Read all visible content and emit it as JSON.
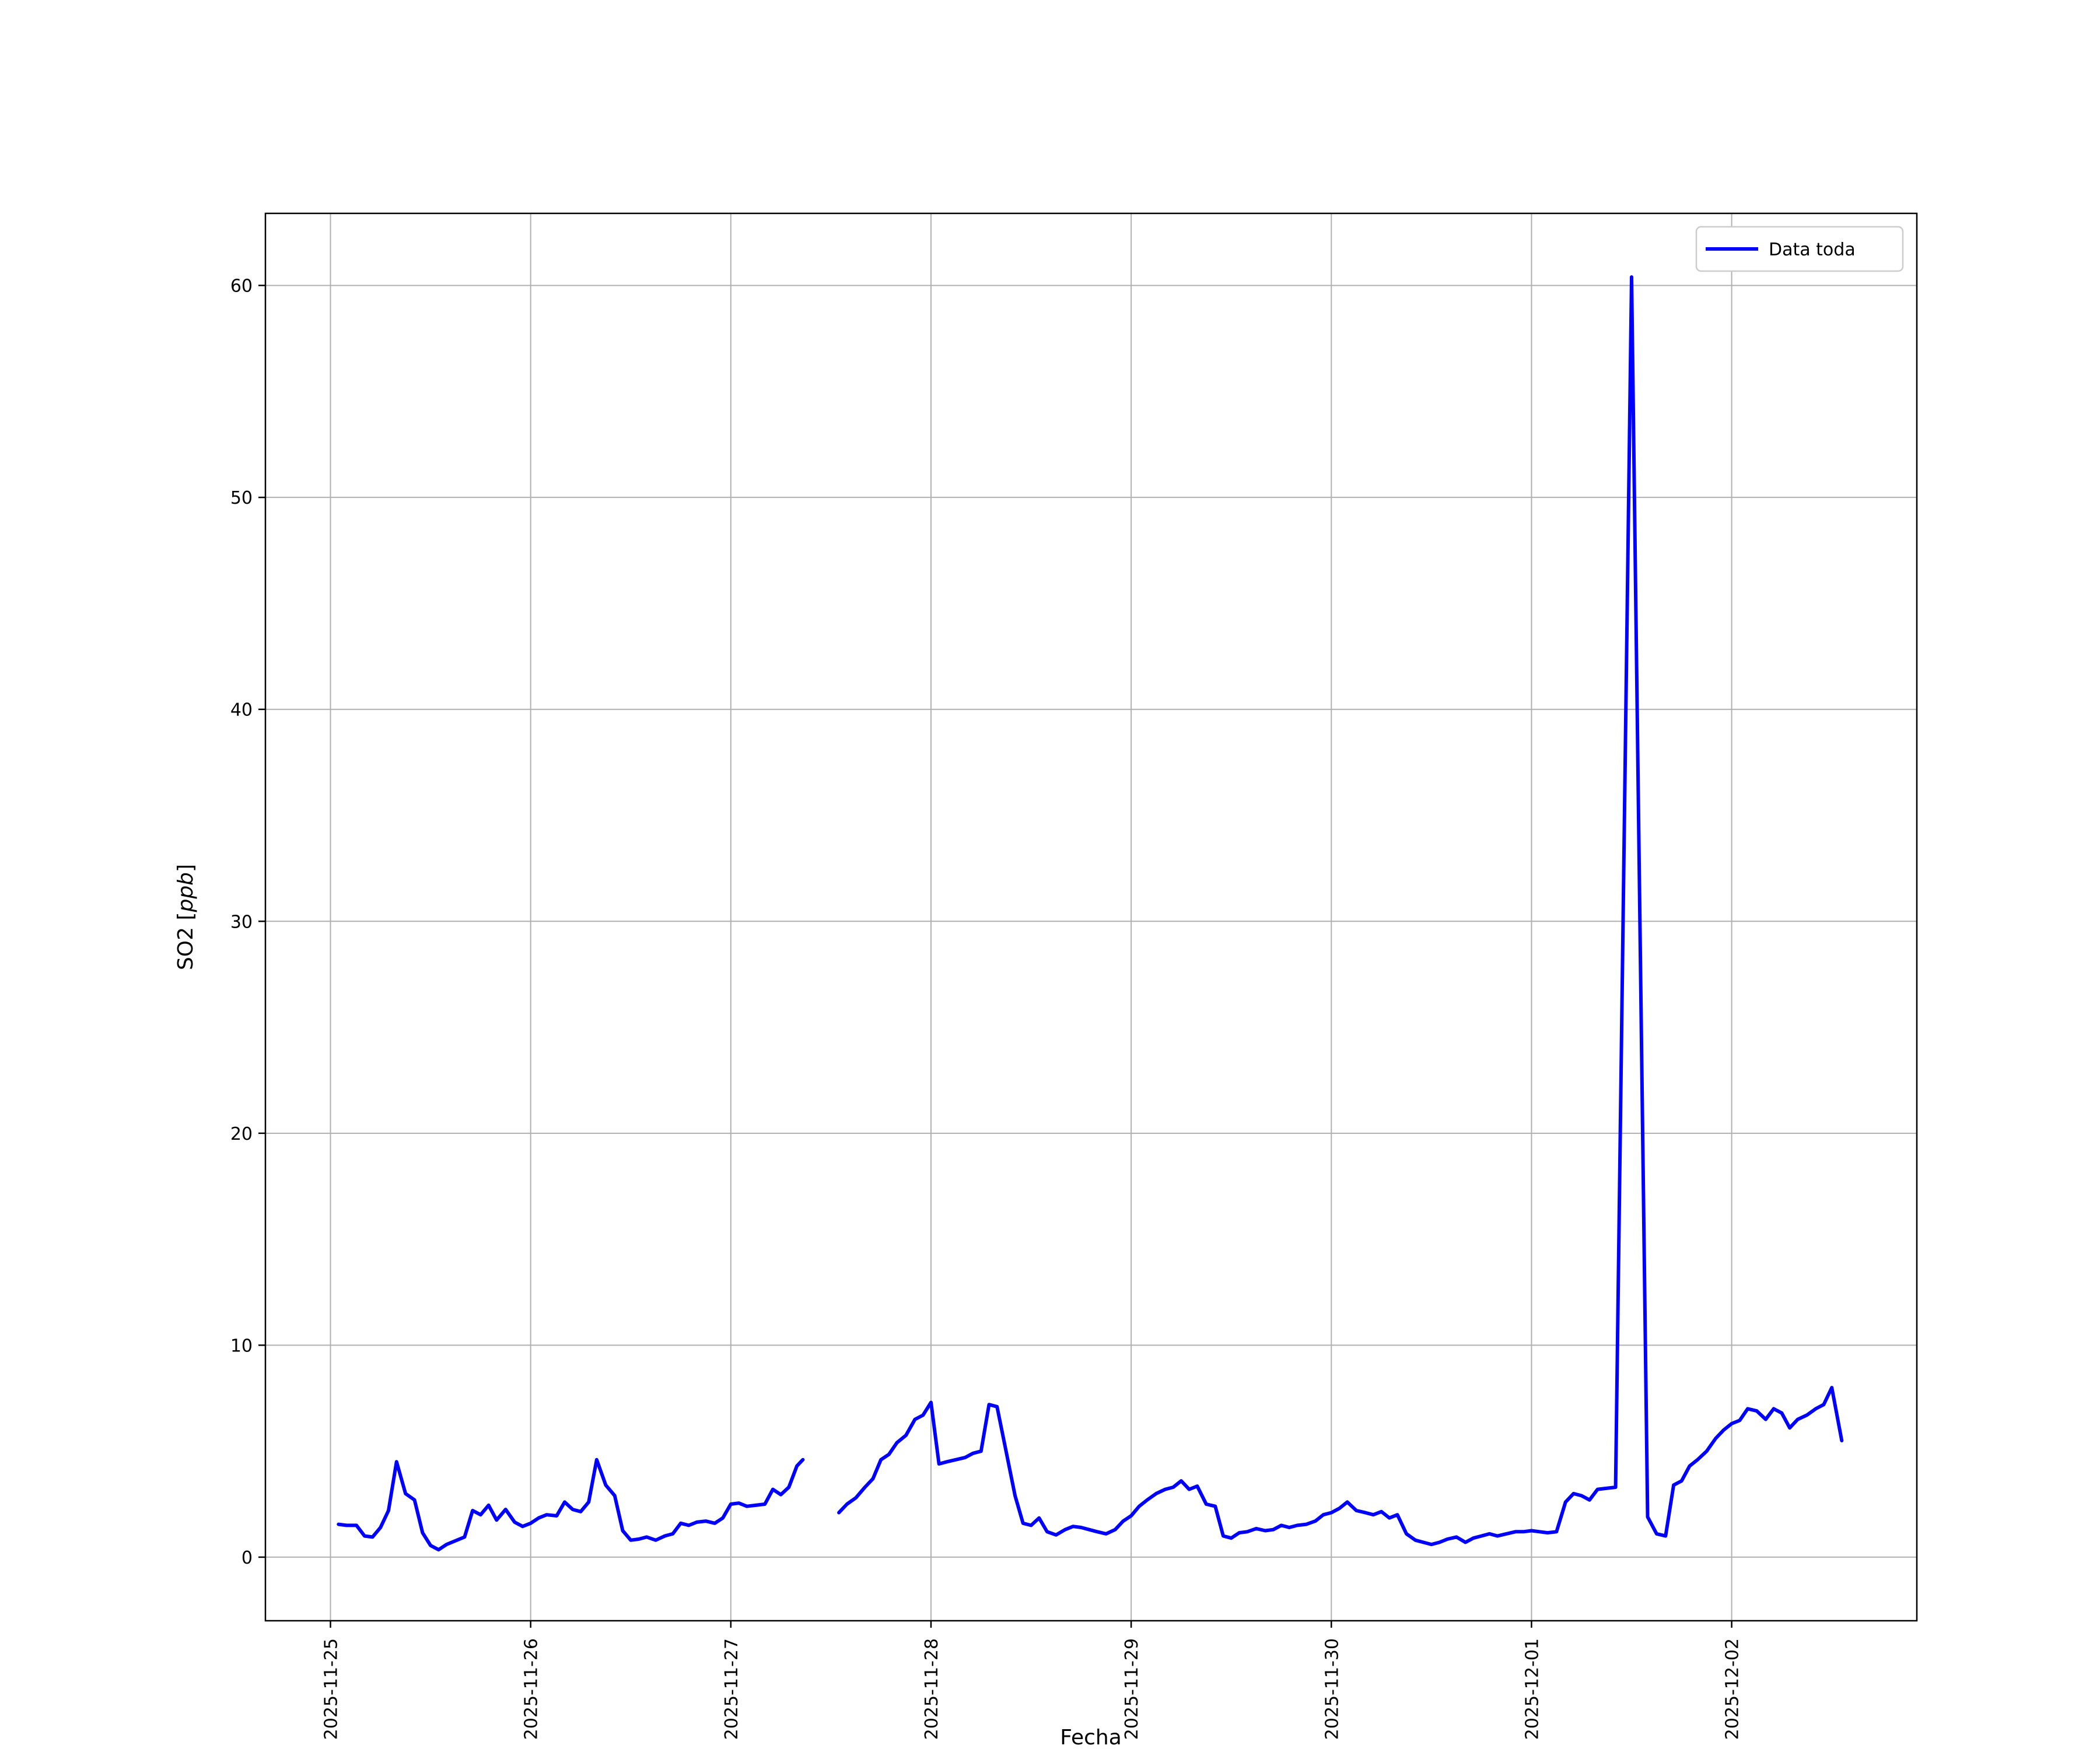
{
  "chart_data": {
    "type": "line",
    "title": "",
    "xlabel": "Fecha",
    "ylabel": "SO2 [ppb]",
    "ylabel_parts": {
      "prefix": "SO2 [",
      "italic": "ppb",
      "suffix": "]"
    },
    "legend": {
      "label": "Data toda",
      "position": "upper right"
    },
    "grid": true,
    "colors": {
      "line": "#0000ff",
      "grid": "#b0b0b0",
      "spine": "#000000",
      "legend_edge": "#cccccc",
      "background": "#ffffff"
    },
    "x_unit": "days since 2025-11-25 00:00",
    "x_tick_positions": [
      0,
      1,
      2,
      3,
      4,
      5,
      6,
      7
    ],
    "x_tick_labels": [
      "2025-11-25",
      "2025-11-26",
      "2025-11-27",
      "2025-11-28",
      "2025-11-29",
      "2025-11-30",
      "2025-12-01",
      "2025-12-02"
    ],
    "y_ticks": [
      0,
      10,
      20,
      30,
      40,
      50,
      60
    ],
    "xlim": [
      -0.325,
      7.925
    ],
    "ylim": [
      -3.0,
      63.4
    ],
    "series": [
      {
        "name": "Data toda",
        "color": "#0000ff",
        "segments": [
          [
            [
              0.04,
              1.55
            ],
            [
              0.08,
              1.5
            ],
            [
              0.13,
              1.5
            ],
            [
              0.17,
              1.0
            ],
            [
              0.21,
              0.95
            ],
            [
              0.25,
              1.4
            ],
            [
              0.29,
              2.2
            ],
            [
              0.33,
              4.5
            ],
            [
              0.375,
              3.0
            ],
            [
              0.42,
              2.7
            ],
            [
              0.46,
              1.15
            ],
            [
              0.5,
              0.55
            ],
            [
              0.54,
              0.35
            ],
            [
              0.58,
              0.6
            ],
            [
              0.67,
              0.95
            ],
            [
              0.71,
              2.2
            ],
            [
              0.75,
              2.0
            ],
            [
              0.79,
              2.45
            ],
            [
              0.83,
              1.75
            ],
            [
              0.875,
              2.25
            ],
            [
              0.92,
              1.65
            ],
            [
              0.96,
              1.45
            ],
            [
              1.0,
              1.6
            ],
            [
              1.04,
              1.85
            ],
            [
              1.08,
              2.0
            ],
            [
              1.13,
              1.95
            ],
            [
              1.17,
              2.6
            ],
            [
              1.21,
              2.25
            ],
            [
              1.25,
              2.15
            ],
            [
              1.29,
              2.6
            ],
            [
              1.33,
              4.6
            ],
            [
              1.375,
              3.4
            ],
            [
              1.42,
              2.9
            ],
            [
              1.46,
              1.25
            ],
            [
              1.5,
              0.8
            ],
            [
              1.54,
              0.85
            ],
            [
              1.58,
              0.95
            ],
            [
              1.625,
              0.8
            ],
            [
              1.67,
              1.0
            ],
            [
              1.71,
              1.1
            ],
            [
              1.75,
              1.6
            ],
            [
              1.79,
              1.5
            ],
            [
              1.83,
              1.65
            ],
            [
              1.875,
              1.7
            ],
            [
              1.92,
              1.6
            ],
            [
              1.96,
              1.85
            ],
            [
              2.0,
              2.5
            ],
            [
              2.04,
              2.55
            ],
            [
              2.08,
              2.4
            ],
            [
              2.125,
              2.45
            ],
            [
              2.17,
              2.5
            ],
            [
              2.21,
              3.2
            ],
            [
              2.25,
              2.95
            ],
            [
              2.29,
              3.3
            ],
            [
              2.33,
              4.3
            ],
            [
              2.36,
              4.6
            ]
          ],
          [
            [
              2.54,
              2.1
            ],
            [
              2.58,
              2.5
            ],
            [
              2.625,
              2.8
            ],
            [
              2.67,
              3.3
            ],
            [
              2.71,
              3.7
            ],
            [
              2.75,
              4.6
            ],
            [
              2.79,
              4.85
            ],
            [
              2.83,
              5.4
            ],
            [
              2.875,
              5.75
            ],
            [
              2.92,
              6.5
            ],
            [
              2.96,
              6.7
            ],
            [
              3.0,
              7.3
            ],
            [
              3.04,
              4.4
            ],
            [
              3.08,
              4.5
            ],
            [
              3.125,
              4.6
            ],
            [
              3.17,
              4.7
            ],
            [
              3.21,
              4.9
            ],
            [
              3.25,
              5.0
            ],
            [
              3.29,
              7.2
            ],
            [
              3.33,
              7.1
            ],
            [
              3.375,
              5.0
            ],
            [
              3.42,
              2.9
            ],
            [
              3.46,
              1.6
            ],
            [
              3.5,
              1.5
            ],
            [
              3.54,
              1.85
            ],
            [
              3.58,
              1.2
            ],
            [
              3.625,
              1.05
            ],
            [
              3.67,
              1.3
            ],
            [
              3.71,
              1.45
            ],
            [
              3.75,
              1.4
            ],
            [
              3.79,
              1.3
            ],
            [
              3.83,
              1.2
            ],
            [
              3.875,
              1.1
            ],
            [
              3.92,
              1.3
            ],
            [
              3.96,
              1.7
            ],
            [
              4.0,
              1.95
            ],
            [
              4.04,
              2.4
            ],
            [
              4.08,
              2.7
            ],
            [
              4.125,
              3.0
            ],
            [
              4.17,
              3.2
            ],
            [
              4.21,
              3.3
            ],
            [
              4.25,
              3.6
            ],
            [
              4.29,
              3.2
            ],
            [
              4.33,
              3.35
            ],
            [
              4.375,
              2.5
            ],
            [
              4.42,
              2.4
            ],
            [
              4.46,
              1.0
            ],
            [
              4.5,
              0.9
            ],
            [
              4.54,
              1.15
            ],
            [
              4.58,
              1.2
            ],
            [
              4.625,
              1.35
            ],
            [
              4.67,
              1.25
            ],
            [
              4.71,
              1.3
            ],
            [
              4.75,
              1.5
            ],
            [
              4.79,
              1.4
            ],
            [
              4.83,
              1.5
            ],
            [
              4.875,
              1.55
            ],
            [
              4.92,
              1.7
            ],
            [
              4.96,
              2.0
            ],
            [
              5.0,
              2.1
            ],
            [
              5.04,
              2.3
            ],
            [
              5.08,
              2.6
            ],
            [
              5.125,
              2.2
            ],
            [
              5.17,
              2.1
            ],
            [
              5.21,
              2.0
            ],
            [
              5.25,
              2.15
            ],
            [
              5.29,
              1.85
            ],
            [
              5.33,
              2.0
            ],
            [
              5.375,
              1.1
            ],
            [
              5.42,
              0.8
            ],
            [
              5.46,
              0.7
            ],
            [
              5.5,
              0.6
            ],
            [
              5.54,
              0.7
            ],
            [
              5.58,
              0.85
            ],
            [
              5.625,
              0.95
            ],
            [
              5.67,
              0.7
            ],
            [
              5.71,
              0.9
            ],
            [
              5.75,
              1.0
            ],
            [
              5.79,
              1.1
            ],
            [
              5.83,
              1.0
            ],
            [
              5.875,
              1.1
            ],
            [
              5.92,
              1.2
            ],
            [
              5.96,
              1.2
            ],
            [
              6.0,
              1.25
            ],
            [
              6.04,
              1.2
            ],
            [
              6.08,
              1.15
            ],
            [
              6.125,
              1.2
            ],
            [
              6.17,
              2.6
            ],
            [
              6.21,
              3.0
            ],
            [
              6.25,
              2.9
            ],
            [
              6.29,
              2.7
            ],
            [
              6.33,
              3.2
            ],
            [
              6.42,
              3.3
            ],
            [
              6.5,
              60.4
            ],
            [
              6.58,
              1.9
            ],
            [
              6.625,
              1.1
            ],
            [
              6.67,
              1.0
            ],
            [
              6.71,
              3.4
            ],
            [
              6.75,
              3.6
            ],
            [
              6.79,
              4.3
            ],
            [
              6.83,
              4.6
            ],
            [
              6.875,
              5.0
            ],
            [
              6.92,
              5.6
            ],
            [
              6.96,
              6.0
            ],
            [
              7.0,
              6.3
            ],
            [
              7.04,
              6.45
            ],
            [
              7.08,
              7.0
            ],
            [
              7.125,
              6.9
            ],
            [
              7.17,
              6.5
            ],
            [
              7.21,
              7.0
            ],
            [
              7.25,
              6.8
            ],
            [
              7.29,
              6.1
            ],
            [
              7.33,
              6.5
            ],
            [
              7.375,
              6.7
            ],
            [
              7.42,
              7.0
            ],
            [
              7.46,
              7.2
            ],
            [
              7.5,
              8.0
            ],
            [
              7.55,
              5.5
            ]
          ]
        ]
      }
    ]
  }
}
